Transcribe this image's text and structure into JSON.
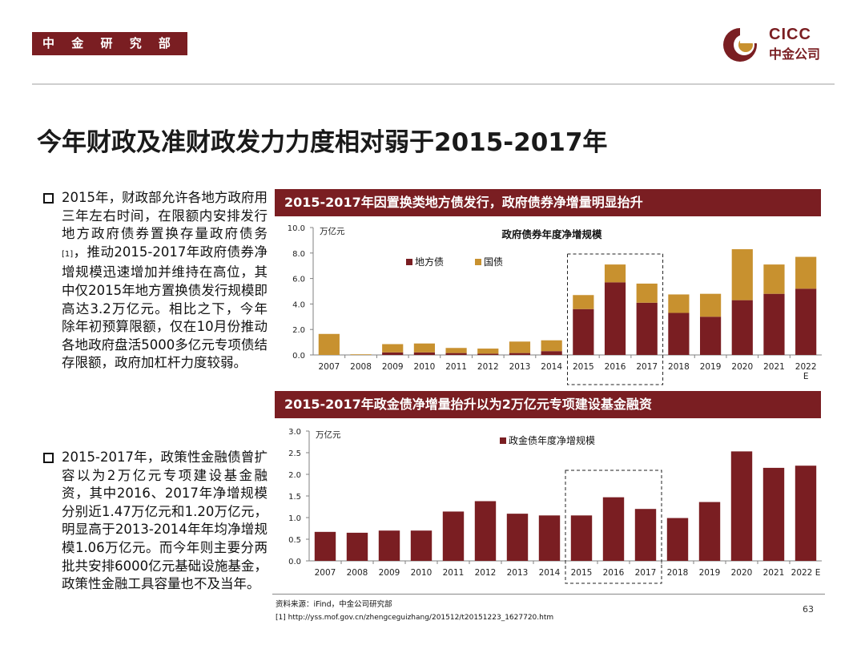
{
  "header": {
    "dept": "中 金 研 究 部",
    "logo_en": "CICC",
    "logo_cn": "中金公司"
  },
  "page_title": "今年财政及准财政发力力度相对弱于2015-2017年",
  "bullets": [
    {
      "pre": "2015年，财政部允许各地方政府用三年左右时间，在限额内安排发行地方政府债券置换存量政府债务",
      "sup": "[1]",
      "post": "，推动2015-2017年政府债券净增规模迅速增加并维持在高位，其中仅2015年地方置换债发行规模即高达3.2万亿元。相比之下，今年除年初预算限额，仅在10月份推动各地政府盘活5000多亿元专项债结存限额，政府加杠杆力度较弱。"
    },
    {
      "pre": "2015-2017年，政策性金融债曾扩容以为2万亿元专项建设基金融资，其中2016、2017年净增规模分别近1.47万亿元和1.20万亿元，明显高于2013-2014年年均净增规模1.06万亿元。而今年则主要分两批共安排6000亿元基础设施基金，政策性金融工具容量也不及当年。",
      "sup": "",
      "post": ""
    }
  ],
  "chart1_header": "2015-2017年因置换类地方债发行，政府债券净增量明显抬升",
  "chart2_header": "2015-2017年政金债净增量抬升以为2万亿元专项建设基金融资",
  "colors": {
    "dark_red": "#7a1e22",
    "gold": "#c8912f",
    "axis": "#808080"
  },
  "chart_data": [
    {
      "type": "bar",
      "stacked": true,
      "title": "政府债券年度净增规模",
      "unit": "万亿元",
      "categories": [
        "2007",
        "2008",
        "2009",
        "2010",
        "2011",
        "2012",
        "2013",
        "2014",
        "2015",
        "2016",
        "2017",
        "2018",
        "2019",
        "2020",
        "2021",
        "2022\nE"
      ],
      "series": [
        {
          "name": "地方债",
          "color": "#7a1e22",
          "values": [
            0.0,
            0.0,
            0.2,
            0.2,
            0.15,
            0.1,
            0.15,
            0.3,
            3.6,
            5.7,
            4.1,
            3.3,
            3.0,
            4.3,
            4.8,
            5.2
          ]
        },
        {
          "name": "国债",
          "color": "#c8912f",
          "values": [
            1.65,
            0.05,
            0.65,
            0.7,
            0.4,
            0.4,
            0.9,
            0.85,
            1.1,
            1.4,
            1.5,
            1.45,
            1.8,
            4.0,
            2.3,
            2.5
          ]
        }
      ],
      "ylim": [
        0,
        10
      ],
      "yticks": [
        "0.0",
        "2.0",
        "4.0",
        "6.0",
        "8.0",
        "10.0"
      ],
      "highlight": [
        "2015",
        "2017"
      ]
    },
    {
      "type": "bar",
      "title": "",
      "unit": "万亿元",
      "categories": [
        "2007",
        "2008",
        "2009",
        "2010",
        "2011",
        "2012",
        "2013",
        "2014",
        "2015",
        "2016",
        "2017",
        "2018",
        "2019",
        "2020",
        "2021",
        "2022 E"
      ],
      "series": [
        {
          "name": "政金债年度净增规模",
          "color": "#7a1e22",
          "values": [
            0.67,
            0.65,
            0.7,
            0.7,
            1.14,
            1.38,
            1.09,
            1.05,
            1.05,
            1.47,
            1.2,
            0.99,
            1.36,
            2.53,
            2.15,
            2.2
          ]
        }
      ],
      "ylim": [
        0,
        3
      ],
      "yticks": [
        "0.0",
        "0.5",
        "1.0",
        "1.5",
        "2.0",
        "2.5",
        "3.0"
      ],
      "highlight": [
        "2015",
        "2017"
      ]
    }
  ],
  "footer": {
    "source": "资料来源：iFind，中金公司研究部",
    "reference": "[1] http://yss.mof.gov.cn/zhengceguizhang/201512/t20151223_1627720.htm",
    "page": "63"
  }
}
